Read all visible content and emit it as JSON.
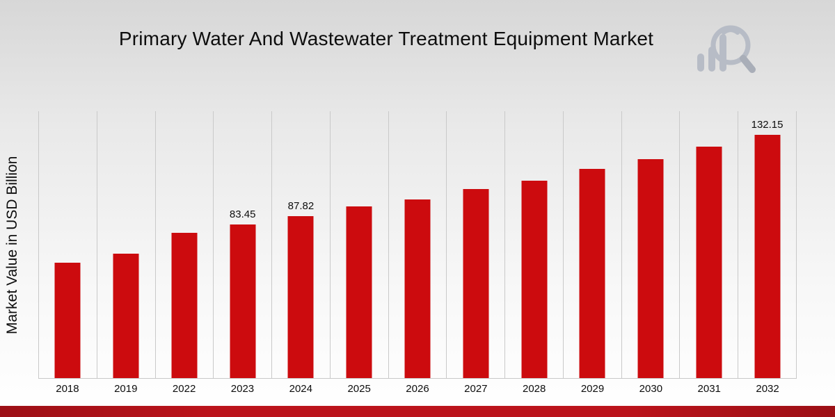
{
  "header": {
    "title": "Primary Water And Wastewater Treatment Equipment Market",
    "logo_name": "bar-chart-magnifier-logo"
  },
  "chart_data": {
    "type": "bar",
    "title": "Primary Water And Wastewater Treatment Equipment Market",
    "xlabel": "",
    "ylabel": "Market Value in USD Billion",
    "categories": [
      "2018",
      "2019",
      "2022",
      "2023",
      "2024",
      "2025",
      "2026",
      "2027",
      "2028",
      "2029",
      "2030",
      "2031",
      "2032"
    ],
    "values": [
      62.8,
      67.7,
      79.0,
      83.45,
      87.82,
      93.2,
      97.0,
      102.6,
      107.1,
      113.5,
      118.9,
      125.6,
      132.15
    ],
    "bar_labels": [
      "",
      "",
      "",
      "83.45",
      "87.82",
      "",
      "",
      "",
      "",
      "",
      "",
      "",
      "132.15"
    ],
    "ylim": [
      0,
      145
    ],
    "grid": "vertical-only",
    "legend": "none",
    "bar_color": "#cc0b0e"
  },
  "colors": {
    "bar": "#cc0b0e",
    "footer_stripe": "#bb131b",
    "gridline": "#c9c9c9",
    "logo_gray": "#b7bcc6",
    "logo_gray_dark": "#a9aeb8"
  }
}
